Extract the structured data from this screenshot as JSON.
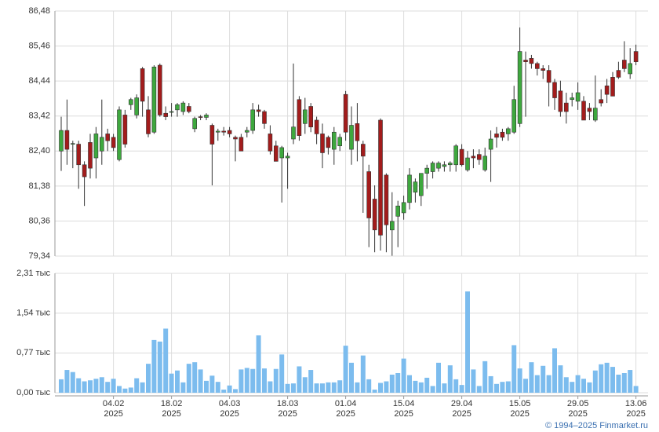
{
  "chart_data": [
    {
      "type": "candlestick",
      "up_color": "#3ea83e",
      "down_color": "#a31c1c",
      "ylim": [
        79.34,
        86.48
      ],
      "yticks": [
        {
          "value": 79.34,
          "label": "79,34"
        },
        {
          "value": 80.36,
          "label": "80,36"
        },
        {
          "value": 81.38,
          "label": "81,38"
        },
        {
          "value": 82.4,
          "label": "82,40"
        },
        {
          "value": 83.42,
          "label": "83,42"
        },
        {
          "value": 84.44,
          "label": "84,44"
        },
        {
          "value": 85.46,
          "label": "85,46"
        },
        {
          "value": 86.48,
          "label": "86,48"
        }
      ],
      "grid": true,
      "open": [
        82.4,
        83.0,
        82.6,
        82.6,
        82.0,
        82.65,
        82.2,
        82.4,
        82.9,
        82.8,
        82.15,
        83.45,
        83.75,
        83.45,
        84.8,
        83.6,
        82.95,
        84.9,
        83.5,
        83.55,
        83.6,
        83.55,
        83.7,
        83.05,
        83.4,
        83.38,
        83.15,
        82.95,
        82.98,
        83.0,
        82.8,
        82.8,
        82.95,
        83.0,
        83.6,
        83.55,
        82.9,
        82.55,
        82.2,
        82.2,
        82.75,
        83.9,
        83.2,
        83.7,
        83.3,
        82.9,
        82.8,
        82.45,
        82.55,
        84.05,
        82.45,
        83.2,
        82.6,
        81.8,
        81.0,
        83.3,
        81.7,
        80.1,
        80.5,
        80.6,
        80.9,
        81.2,
        81.1,
        81.75,
        81.8,
        81.9,
        81.95,
        82.0,
        82.0,
        82.45,
        81.85,
        82.25,
        82.3,
        81.85,
        82.45,
        82.9,
        82.95,
        82.9,
        82.95,
        83.2,
        85.05,
        85.1,
        84.95,
        84.8,
        84.75,
        84.4,
        84.15,
        83.8,
        83.9,
        83.85,
        83.85,
        83.65,
        83.3,
        83.9,
        84.3,
        84.55,
        84.75,
        85.05,
        84.65,
        85.3
      ],
      "high": [
        83.4,
        83.9,
        82.7,
        82.7,
        82.1,
        82.9,
        83.1,
        83.9,
        83.05,
        82.9,
        83.7,
        83.6,
        83.95,
        84.05,
        84.85,
        84.0,
        84.9,
        84.95,
        83.7,
        83.8,
        83.8,
        83.85,
        83.8,
        83.4,
        83.45,
        83.5,
        83.2,
        83.05,
        83.1,
        83.1,
        82.85,
        82.9,
        83.1,
        83.8,
        83.75,
        83.6,
        83.15,
        82.7,
        82.55,
        82.35,
        84.95,
        84.0,
        83.95,
        83.8,
        83.4,
        83.2,
        82.85,
        83.1,
        82.9,
        84.15,
        83.7,
        83.8,
        82.7,
        82.0,
        81.4,
        83.35,
        81.75,
        81.2,
        80.95,
        81.1,
        81.9,
        81.6,
        81.7,
        82.0,
        82.1,
        82.1,
        82.1,
        82.1,
        82.6,
        82.6,
        82.4,
        82.45,
        82.45,
        82.5,
        83.0,
        83.1,
        83.05,
        83.1,
        84.3,
        86.0,
        85.3,
        85.2,
        85.0,
        84.9,
        84.9,
        84.5,
        84.45,
        84.1,
        84.1,
        84.4,
        84.0,
        83.8,
        84.6,
        84.2,
        84.5,
        84.7,
        85.0,
        85.6,
        85.4,
        85.5
      ],
      "low": [
        81.82,
        82.0,
        81.9,
        81.3,
        80.8,
        81.6,
        81.6,
        82.0,
        82.4,
        82.4,
        82.1,
        82.5,
        83.6,
        83.35,
        83.4,
        82.8,
        82.9,
        83.4,
        83.3,
        83.4,
        83.4,
        83.45,
        83.5,
        82.95,
        83.3,
        83.3,
        81.4,
        82.7,
        82.85,
        82.8,
        82.1,
        82.45,
        82.8,
        82.9,
        83.4,
        83.05,
        82.3,
        82.1,
        80.9,
        81.3,
        82.6,
        82.7,
        82.9,
        82.95,
        82.6,
        81.9,
        82.3,
        82.0,
        82.4,
        82.7,
        82.0,
        82.1,
        80.6,
        79.6,
        79.45,
        79.5,
        79.45,
        79.35,
        79.6,
        80.4,
        80.7,
        80.9,
        80.8,
        81.3,
        81.6,
        81.8,
        81.8,
        81.8,
        81.8,
        81.95,
        81.8,
        81.9,
        82.0,
        81.8,
        81.5,
        82.5,
        82.7,
        82.7,
        82.9,
        83.1,
        83.4,
        84.8,
        84.6,
        84.5,
        83.7,
        83.6,
        83.4,
        83.2,
        83.7,
        83.6,
        83.3,
        83.3,
        83.25,
        83.7,
        83.8,
        84.0,
        84.5,
        84.7,
        84.5,
        84.9
      ],
      "close": [
        83.0,
        82.45,
        82.62,
        82.0,
        81.65,
        81.9,
        82.9,
        82.8,
        82.7,
        82.5,
        83.6,
        82.6,
        83.9,
        83.95,
        83.85,
        82.9,
        84.85,
        83.45,
        83.4,
        83.55,
        83.75,
        83.8,
        83.55,
        83.35,
        83.38,
        83.45,
        82.6,
        82.98,
        82.95,
        82.9,
        82.75,
        82.4,
        83.0,
        83.6,
        83.55,
        83.2,
        82.4,
        82.1,
        82.5,
        82.25,
        83.1,
        82.85,
        83.6,
        83.1,
        82.9,
        82.35,
        82.5,
        82.95,
        82.8,
        82.95,
        83.15,
        82.7,
        82.25,
        80.45,
        80.1,
        79.95,
        80.25,
        80.35,
        80.8,
        80.9,
        81.7,
        81.5,
        81.75,
        81.9,
        82.05,
        82.05,
        82.0,
        82.05,
        82.55,
        82.0,
        82.2,
        82.2,
        82.15,
        82.25,
        82.75,
        82.8,
        82.8,
        83.05,
        83.9,
        85.3,
        85.0,
        84.95,
        84.8,
        84.75,
        84.4,
        83.95,
        83.55,
        83.55,
        83.95,
        84.1,
        83.3,
        83.55,
        83.65,
        83.8,
        84.05,
        84.0,
        84.55,
        84.8,
        84.95,
        85.0
      ]
    },
    {
      "type": "bar",
      "color": "#7cbcee",
      "ylim": [
        0,
        2.31
      ],
      "yticks": [
        {
          "value": 0,
          "label": "0,00 тыс"
        },
        {
          "value": 0.77,
          "label": "0,77 тыс"
        },
        {
          "value": 1.54,
          "label": "1,54 тыс"
        },
        {
          "value": 2.31,
          "label": "2,31 тыс"
        }
      ],
      "grid": true,
      "year_label": "2025",
      "categories": [
        null,
        null,
        null,
        null,
        null,
        null,
        null,
        null,
        null,
        "04.02",
        null,
        null,
        null,
        null,
        null,
        null,
        null,
        null,
        null,
        "18.02",
        null,
        null,
        null,
        null,
        null,
        null,
        null,
        null,
        null,
        "04.03",
        null,
        null,
        null,
        null,
        null,
        null,
        null,
        null,
        null,
        "18.03",
        null,
        null,
        null,
        null,
        null,
        null,
        null,
        null,
        null,
        "01.04",
        null,
        null,
        null,
        null,
        null,
        null,
        null,
        null,
        null,
        "15.04",
        null,
        null,
        null,
        null,
        null,
        null,
        null,
        null,
        null,
        "29.04",
        null,
        null,
        null,
        null,
        null,
        null,
        null,
        null,
        null,
        "15.05",
        null,
        null,
        null,
        null,
        null,
        null,
        null,
        null,
        null,
        "29.05",
        null,
        null,
        null,
        null,
        null,
        null,
        null,
        null,
        null,
        "13.06"
      ],
      "values": [
        0.26,
        0.44,
        0.4,
        0.28,
        0.22,
        0.24,
        0.27,
        0.3,
        0.21,
        0.27,
        0.13,
        0.08,
        0.1,
        0.28,
        0.2,
        0.56,
        1.02,
        0.99,
        1.24,
        0.37,
        0.43,
        0.2,
        0.56,
        0.59,
        0.45,
        0.23,
        0.33,
        0.21,
        0.06,
        0.14,
        0.07,
        0.45,
        0.48,
        0.46,
        1.11,
        0.47,
        0.22,
        0.46,
        0.74,
        0.17,
        0.18,
        0.51,
        0.3,
        0.44,
        0.18,
        0.18,
        0.2,
        0.2,
        0.24,
        0.91,
        0.58,
        0.2,
        0.72,
        0.26,
        0.06,
        0.19,
        0.22,
        0.35,
        0.38,
        0.66,
        0.34,
        0.23,
        0.2,
        0.29,
        0.13,
        0.58,
        0.18,
        0.53,
        0.26,
        0.15,
        1.96,
        0.45,
        0.13,
        0.61,
        0.32,
        0.17,
        0.21,
        0.22,
        0.92,
        0.47,
        0.27,
        0.59,
        0.34,
        0.52,
        0.34,
        0.86,
        0.53,
        0.3,
        0.21,
        0.34,
        0.27,
        0.2,
        0.43,
        0.55,
        0.58,
        0.5,
        0.35,
        0.38,
        0.44,
        0.13
      ]
    }
  ],
  "footer": "© 1994–2025 Finmarket.ru"
}
